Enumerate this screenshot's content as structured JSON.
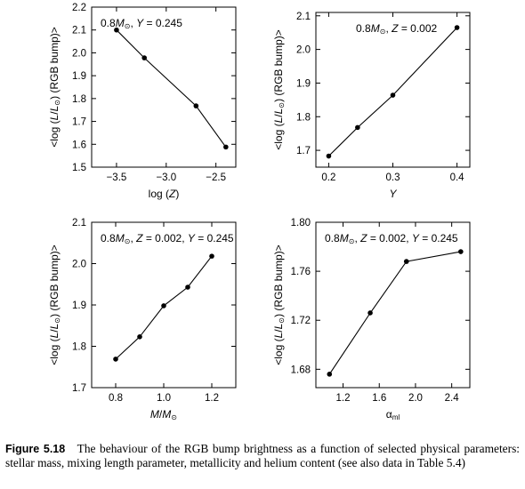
{
  "chart_data": [
    {
      "type": "line",
      "annotation": "0.8M⊙, Y = 0.245",
      "xlabel": "log (Z)",
      "ylabel": "<log (L/L⊙) (RGB bump)>",
      "xlim": [
        -3.75,
        -2.3
      ],
      "ylim": [
        1.5,
        2.2
      ],
      "xticks": [
        -3.5,
        -3.0,
        -2.5
      ],
      "xticklabels": [
        "−3.5",
        "−3.0",
        "−2.5"
      ],
      "yticks": [
        1.5,
        1.6,
        1.7,
        1.8,
        1.9,
        2.0,
        2.1,
        2.2
      ],
      "yticklabels": [
        "1.5",
        "1.6",
        "1.7",
        "1.8",
        "1.9",
        "2.0",
        "2.1",
        "2.2"
      ],
      "x": [
        -3.5,
        -3.22,
        -2.7,
        -2.4
      ],
      "y": [
        2.1,
        1.978,
        1.768,
        1.588
      ]
    },
    {
      "type": "line",
      "annotation": "0.8M⊙, Z = 0.002",
      "xlabel": "Y",
      "ylabel": "<log (L/L⊙) (RGB bump)>",
      "xlim": [
        0.18,
        0.42
      ],
      "ylim": [
        1.65,
        2.11
      ],
      "xticks": [
        0.2,
        0.3,
        0.4
      ],
      "xticklabels": [
        "0.2",
        "0.3",
        "0.4"
      ],
      "yticks": [
        1.7,
        1.8,
        1.9,
        2.0,
        2.1
      ],
      "yticklabels": [
        "1.7",
        "1.8",
        "1.9",
        "2.0",
        "2.1"
      ],
      "x": [
        0.2,
        0.245,
        0.3,
        0.4
      ],
      "y": [
        1.683,
        1.768,
        1.864,
        2.065
      ]
    },
    {
      "type": "line",
      "annotation": "0.8M⊙, Z = 0.002, Y = 0.245",
      "xlabel": "M/M⊙",
      "ylabel": "<log (L/L⊙) (RGB bump)>",
      "xlim": [
        0.7,
        1.3
      ],
      "ylim": [
        1.7,
        2.1
      ],
      "xticks": [
        0.8,
        1.0,
        1.2
      ],
      "xticklabels": [
        "0.8",
        "1.0",
        "1.2"
      ],
      "yticks": [
        1.7,
        1.8,
        1.9,
        2.0,
        2.1
      ],
      "yticklabels": [
        "1.7",
        "1.8",
        "1.9",
        "2.0",
        "2.1"
      ],
      "x": [
        0.8,
        0.9,
        1.0,
        1.1,
        1.2
      ],
      "y": [
        1.769,
        1.823,
        1.898,
        1.943,
        2.018
      ]
    },
    {
      "type": "line",
      "annotation": "0.8M⊙, Z = 0.002, Y = 0.245",
      "xlabel": "αml",
      "ylabel": "<log (L/L⊙) (RGB bump)>",
      "xlim": [
        0.9,
        2.6
      ],
      "ylim": [
        1.665,
        1.8
      ],
      "xticks": [
        1.2,
        1.6,
        2.0,
        2.4
      ],
      "xticklabels": [
        "1.2",
        "1.6",
        "2.0",
        "2.4"
      ],
      "yticks": [
        1.68,
        1.72,
        1.76,
        1.8
      ],
      "yticklabels": [
        "1.68",
        "1.72",
        "1.76",
        "1.80"
      ],
      "x": [
        1.05,
        1.5,
        1.9,
        2.5
      ],
      "y": [
        1.676,
        1.726,
        1.768,
        1.776
      ]
    }
  ],
  "caption": {
    "label": "Figure 5.18",
    "text": "The behaviour of the RGB bump brightness as a function of selected physical parameters: stellar mass, mixing length parameter, metallicity and helium content (see also data in Table 5.4)"
  }
}
